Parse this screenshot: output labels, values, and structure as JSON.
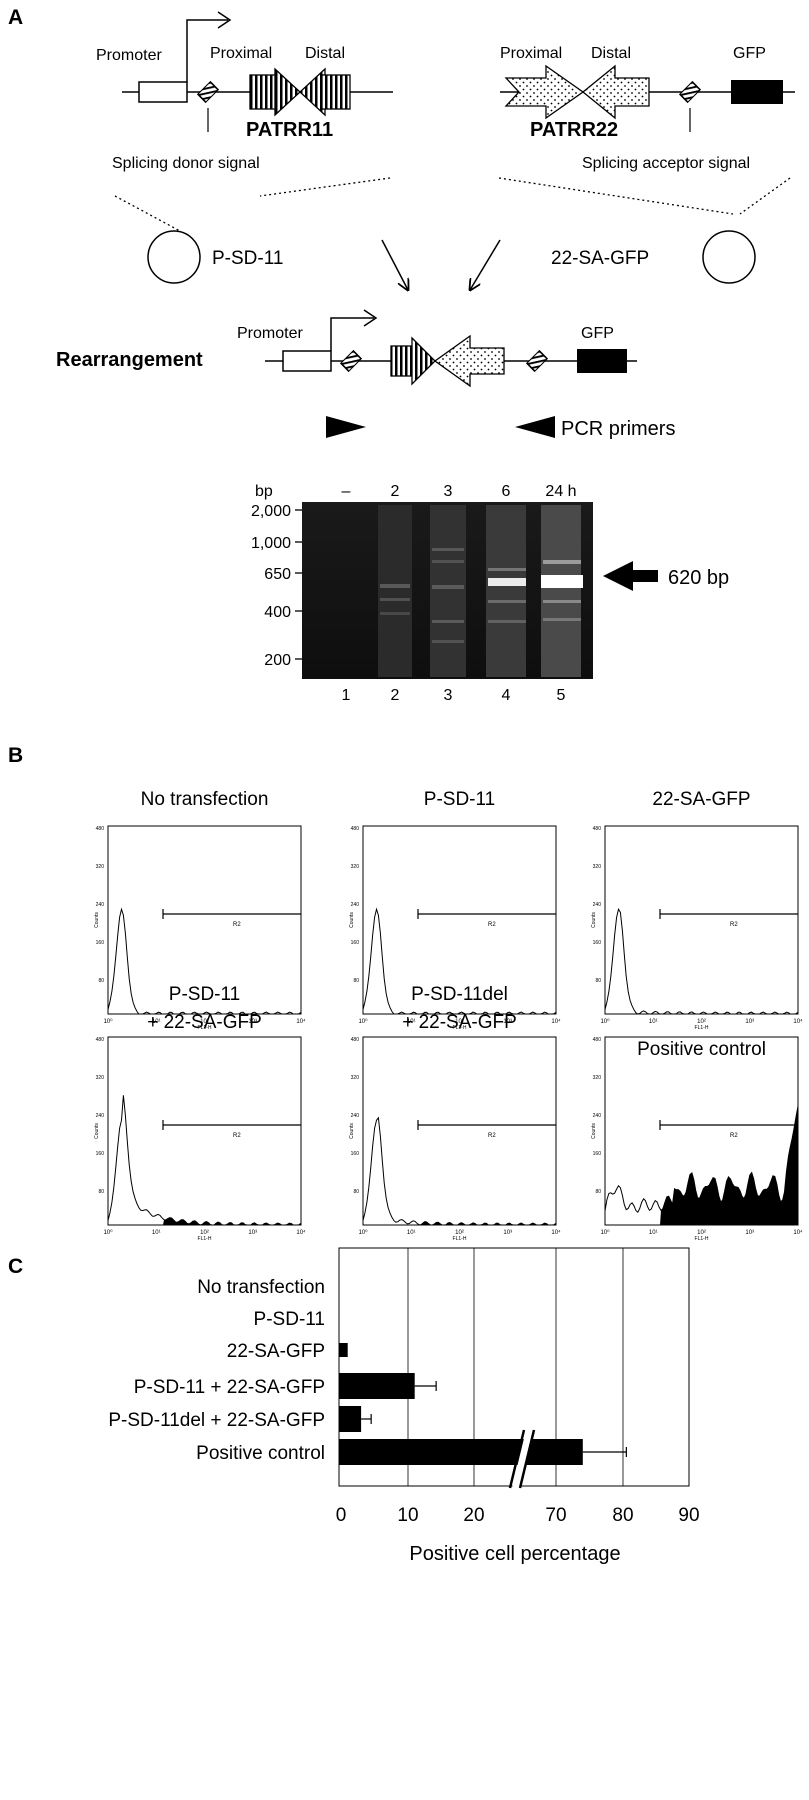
{
  "panel_a": {
    "letter": "A",
    "construct_left": {
      "promoter": "Promoter",
      "proximal": "Proximal",
      "distal": "Distal",
      "name": "PATRR11",
      "signal": "Splicing donor signal"
    },
    "construct_right": {
      "proximal": "Proximal",
      "distal": "Distal",
      "gfp": "GFP",
      "name": "PATRR22",
      "signal": "Splicing acceptor signal"
    },
    "plasmid_left": "P-SD-11",
    "plasmid_right": "22-SA-GFP",
    "rearrangement": {
      "title": "Rearrangement",
      "promoter": "Promoter",
      "gfp": "GFP",
      "primers": "PCR primers"
    },
    "gel": {
      "bp_label": "bp",
      "markers": [
        "2,000",
        "1,000",
        "650",
        "400",
        "200"
      ],
      "time_labels": [
        "–",
        "2",
        "3",
        "6",
        "24 h"
      ],
      "lane_numbers": [
        "1",
        "2",
        "3",
        "4",
        "5"
      ],
      "product_label": "620 bp"
    }
  },
  "panel_b": {
    "letter": "B",
    "histograms": [
      {
        "title_lines": [
          "No transfection"
        ],
        "gated_fraction": 0.0
      },
      {
        "title_lines": [
          "P-SD-11"
        ],
        "gated_fraction": 0.0
      },
      {
        "title_lines": [
          "22-SA-GFP"
        ],
        "gated_fraction": 0.01
      },
      {
        "title_lines": [
          "P-SD-11",
          "+ 22-SA-GFP"
        ],
        "gated_fraction": 0.11
      },
      {
        "title_lines": [
          "P-SD-11del",
          "+ 22-SA-GFP"
        ],
        "gated_fraction": 0.03
      },
      {
        "title_lines": [
          "Positive control"
        ],
        "gated_fraction": 0.74
      }
    ],
    "y_ticks": [
      "480",
      "320",
      "240",
      "160",
      "80"
    ],
    "y_axis_label": "Counts",
    "x_ticks": [
      "10⁰",
      "10¹",
      "10²",
      "10³",
      "10⁴"
    ],
    "x_axis_label": "FL1-H",
    "gate_label": "R2"
  },
  "panel_c": {
    "letter": "C",
    "chart_data": {
      "type": "bar",
      "orientation": "horizontal",
      "categories": [
        "No transfection",
        "P-SD-11",
        "22-SA-GFP",
        "P-SD-11 + 22-SA-GFP",
        "P-SD-11del + 22-SA-GFP",
        "Positive control"
      ],
      "values": [
        0,
        0,
        1,
        11,
        3,
        74
      ],
      "errors": [
        0,
        0,
        0,
        3.2,
        1.5,
        6.5
      ],
      "xlabel": "Positive cell percentage",
      "x_ticks": [
        "0",
        "10",
        "20",
        "70",
        "80",
        "90"
      ],
      "axis_break": [
        25,
        65
      ],
      "grid": true
    }
  }
}
